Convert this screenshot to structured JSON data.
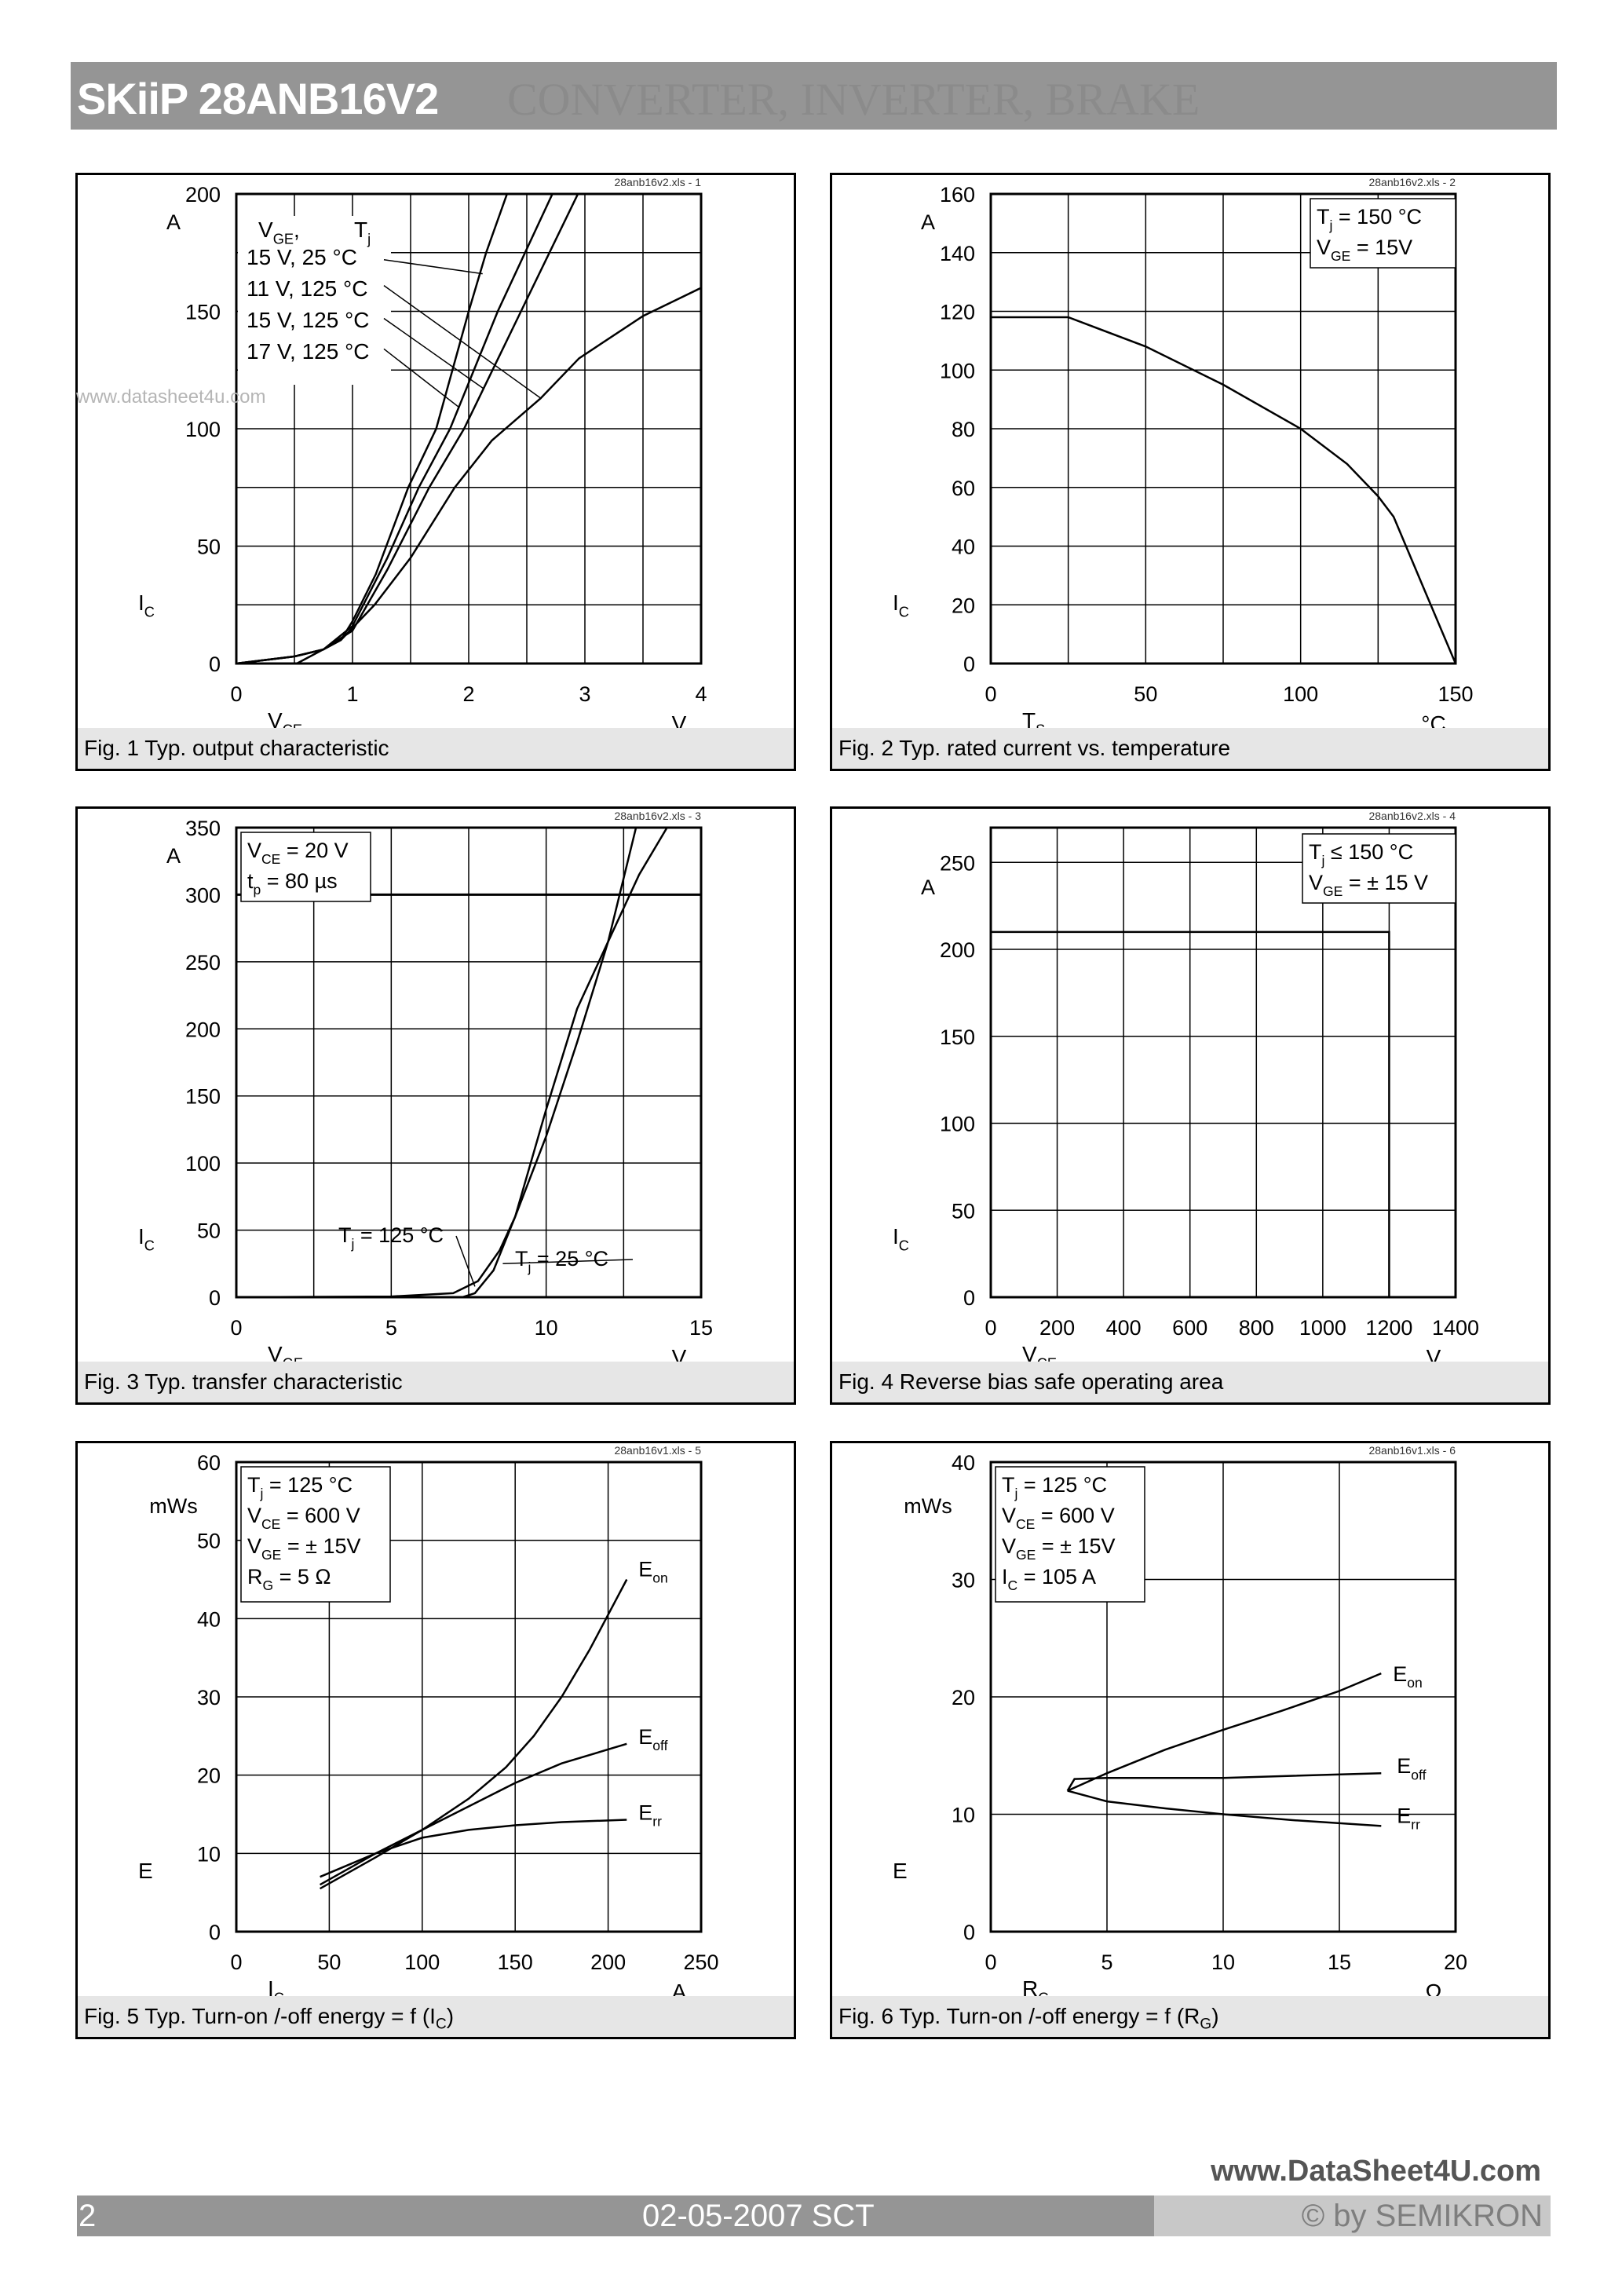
{
  "header": {
    "title": "SKiiP 28ANB16V2",
    "subtitle": "CONVERTER, INVERTER, BRAKE"
  },
  "watermark": "www.datasheet4u.com",
  "footer": {
    "page": "2",
    "date": "02-05-2007  SCT",
    "copyright": "© by SEMIKRON",
    "watermark": "www.DataSheet4U.com"
  },
  "captions": [
    {
      "text": "Fig. 1 Typ. output characteristic",
      "sub": "",
      "tail": ""
    },
    {
      "text": "Fig. 2 Typ. rated current vs. temperature",
      "sub": "",
      "tail": ""
    },
    {
      "text": "Fig. 3 Typ. transfer characteristic",
      "sub": "",
      "tail": ""
    },
    {
      "text": "Fig. 4 Reverse bias safe operating area",
      "sub": "",
      "tail": ""
    },
    {
      "text": "Fig. 5 Typ. Turn-on /-off energy = f (I",
      "sub": "C",
      "tail": ")"
    },
    {
      "text": "Fig. 6 Typ. Turn-on /-off energy = f (R",
      "sub": "G",
      "tail": ")"
    }
  ],
  "chart_data": [
    {
      "type": "line",
      "source": "28anb16v2.xls - 1",
      "xlim": [
        0,
        4
      ],
      "ylim": [
        0,
        200
      ],
      "xticks": [
        "0",
        "1",
        "2",
        "3",
        "4"
      ],
      "yticks": [
        "0",
        "50",
        "100",
        "150",
        "200"
      ],
      "xgrid_step": 0.5,
      "ygrid_step": 25,
      "grid": true,
      "xlabel": [
        "V",
        "CE",
        ""
      ],
      "xunit": "V",
      "ylabel": [
        "I",
        "C",
        ""
      ],
      "yunit": "A",
      "legend_header": [
        [
          "V",
          "GE",
          ","
        ],
        [
          "T",
          "j",
          ""
        ]
      ],
      "series": [
        {
          "name": [
            "15 V,   25 °C"
          ],
          "points": [
            [
              0,
              0
            ],
            [
              0.5,
              3
            ],
            [
              0.75,
              6
            ],
            [
              0.9,
              10
            ],
            [
              1.0,
              18
            ],
            [
              1.2,
              38
            ],
            [
              1.48,
              75
            ],
            [
              1.72,
              100
            ],
            [
              2.0,
              150
            ],
            [
              2.15,
              175
            ],
            [
              2.33,
              200
            ]
          ]
        },
        {
          "name": [
            "11 V, 125 °C"
          ],
          "points": [
            [
              0.52,
              0
            ],
            [
              0.9,
              10
            ],
            [
              1.19,
              25
            ],
            [
              1.5,
              45
            ],
            [
              1.88,
              75
            ],
            [
              2.2,
              95
            ],
            [
              2.62,
              113
            ],
            [
              2.95,
              130
            ],
            [
              3.5,
              148
            ],
            [
              4,
              160
            ]
          ]
        },
        {
          "name": [
            "15 V, 125 °C"
          ],
          "points": [
            [
              0,
              0
            ],
            [
              0.5,
              3
            ],
            [
              0.75,
              6
            ],
            [
              1.0,
              14
            ],
            [
              1.3,
              40
            ],
            [
              1.66,
              75
            ],
            [
              1.96,
              100
            ],
            [
              2.45,
              150
            ],
            [
              2.94,
              200
            ]
          ]
        },
        {
          "name": [
            "17 V, 125 °C"
          ],
          "points": [
            [
              0,
              0
            ],
            [
              0.5,
              3
            ],
            [
              0.75,
              6
            ],
            [
              1.0,
              16
            ],
            [
              1.3,
              45
            ],
            [
              1.57,
              75
            ],
            [
              1.84,
              100
            ],
            [
              2.25,
              150
            ],
            [
              2.72,
              200
            ]
          ]
        }
      ]
    },
    {
      "type": "line",
      "source": "28anb16v2.xls - 2",
      "xlim": [
        0,
        150
      ],
      "ylim": [
        0,
        160
      ],
      "xticks": [
        "0",
        "50",
        "100",
        "150"
      ],
      "yticks": [
        "0",
        "20",
        "40",
        "60",
        "80",
        "100",
        "120",
        "140",
        "160"
      ],
      "xgrid_step": 25,
      "ygrid_step": 20,
      "grid": true,
      "xlabel": [
        "T",
        "S",
        ""
      ],
      "xunit": "°C",
      "ylabel": [
        "I",
        "C",
        ""
      ],
      "yunit": "A",
      "legend": [
        [
          "T",
          "j",
          "    = 150 °C"
        ],
        [
          "V",
          "GE",
          " = 15V"
        ]
      ],
      "series": [
        {
          "points": [
            [
              0,
              118
            ],
            [
              25,
              118
            ],
            [
              50,
              108
            ],
            [
              75,
              95
            ],
            [
              100,
              80
            ],
            [
              115,
              68
            ],
            [
              125,
              57
            ],
            [
              130,
              50
            ],
            [
              140,
              25
            ],
            [
              150,
              0
            ]
          ]
        }
      ]
    },
    {
      "type": "line",
      "source": "28anb16v2.xls - 3",
      "xlim": [
        0,
        15
      ],
      "ylim": [
        0,
        350
      ],
      "xticks": [
        "0",
        "5",
        "10",
        "15"
      ],
      "yticks": [
        "0",
        "50",
        "100",
        "150",
        "200",
        "250",
        "300",
        "350"
      ],
      "xgrid_step": 2.5,
      "ygrid_step": 50,
      "grid": true,
      "limit_line": 300,
      "xlabel": [
        "V",
        "GE",
        ""
      ],
      "xunit": "V",
      "ylabel": [
        "I",
        "C",
        ""
      ],
      "yunit": "A",
      "legend": [
        [
          "V",
          "CE",
          " = 20 V"
        ],
        [
          "t",
          "p",
          "    = 80 µs"
        ]
      ],
      "series": [
        {
          "name": [
            "T",
            "j",
            " = 125 °C"
          ],
          "points": [
            [
              0,
              0
            ],
            [
              5,
              0.5
            ],
            [
              7,
              3
            ],
            [
              7.8,
              12
            ],
            [
              8.5,
              35
            ],
            [
              9,
              60
            ],
            [
              10,
              120
            ],
            [
              11,
              190
            ],
            [
              12,
              265
            ],
            [
              12.9,
              350
            ]
          ]
        },
        {
          "name": [
            "T",
            "j",
            " = 25 °C"
          ],
          "points": [
            [
              0,
              0
            ],
            [
              7.3,
              0
            ],
            [
              7.7,
              3
            ],
            [
              8.3,
              20
            ],
            [
              9,
              60
            ],
            [
              10,
              140
            ],
            [
              11,
              215
            ],
            [
              12,
              265
            ],
            [
              13,
              315
            ],
            [
              13.9,
              350
            ]
          ]
        }
      ]
    },
    {
      "type": "line",
      "source": "28anb16v2.xls - 4",
      "xlim": [
        0,
        1400
      ],
      "ylim": [
        0,
        270
      ],
      "xticks": [
        "0",
        "200",
        "400",
        "600",
        "800",
        "1000",
        "1200",
        "1400"
      ],
      "yticks": [
        "0",
        "50",
        "100",
        "150",
        "200",
        "250"
      ],
      "xgrid_step": 200,
      "ygrid_step": 50,
      "grid": true,
      "xlabel": [
        "V",
        "CE",
        ""
      ],
      "xunit": "V",
      "ylabel": [
        "I",
        "C",
        ""
      ],
      "yunit": "A",
      "legend": [
        [
          "T",
          "j",
          "    ≤ 150 °C"
        ],
        [
          "V",
          "GE",
          " = ± 15 V"
        ]
      ],
      "series": [
        {
          "points": [
            [
              0,
              210
            ],
            [
              1200,
              210
            ],
            [
              1200,
              0
            ]
          ]
        }
      ]
    },
    {
      "type": "line",
      "source": "28anb16v1.xls - 5",
      "xlim": [
        0,
        250
      ],
      "ylim": [
        0,
        60
      ],
      "xticks": [
        "0",
        "50",
        "100",
        "150",
        "200",
        "250"
      ],
      "yticks": [
        "0",
        "10",
        "20",
        "30",
        "40",
        "50",
        "60"
      ],
      "xgrid_step": 50,
      "ygrid_step": 10,
      "grid": true,
      "xlabel": [
        "I",
        "C",
        ""
      ],
      "xunit": "A",
      "ylabel": [
        "E",
        "",
        ""
      ],
      "yunit": "mWs",
      "legend": [
        [
          "T",
          "j",
          "    = 125 °C"
        ],
        [
          "V",
          "CE",
          " = 600 V"
        ],
        [
          "V",
          "GE",
          " = ± 15V"
        ],
        [
          "R",
          "G",
          "    = 5 Ω"
        ]
      ],
      "series": [
        {
          "name": [
            "E",
            "on",
            ""
          ],
          "points": [
            [
              45,
              6
            ],
            [
              75,
              10
            ],
            [
              100,
              13
            ],
            [
              125,
              17
            ],
            [
              145,
              21
            ],
            [
              160,
              25
            ],
            [
              175,
              30
            ],
            [
              190,
              36
            ],
            [
              210,
              45
            ]
          ]
        },
        {
          "name": [
            "E",
            "off",
            ""
          ],
          "points": [
            [
              45,
              5.5
            ],
            [
              75,
              9.5
            ],
            [
              100,
              13
            ],
            [
              125,
              16
            ],
            [
              150,
              19
            ],
            [
              175,
              21.5
            ],
            [
              210,
              24
            ]
          ]
        },
        {
          "name": [
            "E",
            "rr",
            ""
          ],
          "points": [
            [
              45,
              7
            ],
            [
              75,
              10
            ],
            [
              100,
              12
            ],
            [
              125,
              13
            ],
            [
              150,
              13.6
            ],
            [
              175,
              14
            ],
            [
              210,
              14.3
            ]
          ]
        }
      ]
    },
    {
      "type": "line",
      "source": "28anb16v1.xls - 6",
      "xlim": [
        0,
        20
      ],
      "ylim": [
        0,
        40
      ],
      "xticks": [
        "0",
        "5",
        "10",
        "15",
        "20"
      ],
      "yticks": [
        "0",
        "10",
        "20",
        "30",
        "40"
      ],
      "xgrid_step": 5,
      "ygrid_step": 10,
      "grid": true,
      "xlabel": [
        "R",
        "G",
        ""
      ],
      "xunit": "Ω",
      "ylabel": [
        "E",
        "",
        ""
      ],
      "yunit": "mWs",
      "legend": [
        [
          "T",
          "j",
          "    = 125 °C"
        ],
        [
          "V",
          "CE",
          " = 600 V"
        ],
        [
          "V",
          "GE",
          " = ± 15V"
        ],
        [
          "I",
          "C",
          "    = 105 A"
        ]
      ],
      "series": [
        {
          "name": [
            "E",
            "on",
            ""
          ],
          "points": [
            [
              3.3,
              12
            ],
            [
              5,
              13.5
            ],
            [
              7.5,
              15.5
            ],
            [
              10,
              17.2
            ],
            [
              12.5,
              18.8
            ],
            [
              15,
              20.5
            ],
            [
              16.8,
              22
            ]
          ]
        },
        {
          "name": [
            "E",
            "off",
            ""
          ],
          "points": [
            [
              3.3,
              12
            ],
            [
              3.6,
              13
            ],
            [
              5,
              13.1
            ],
            [
              10,
              13.1
            ],
            [
              16.8,
              13.5
            ]
          ]
        },
        {
          "name": [
            "E",
            "rr",
            ""
          ],
          "points": [
            [
              3.3,
              12
            ],
            [
              5,
              11.1
            ],
            [
              7.5,
              10.5
            ],
            [
              10,
              10
            ],
            [
              13,
              9.5
            ],
            [
              16.8,
              9
            ]
          ]
        }
      ]
    }
  ]
}
